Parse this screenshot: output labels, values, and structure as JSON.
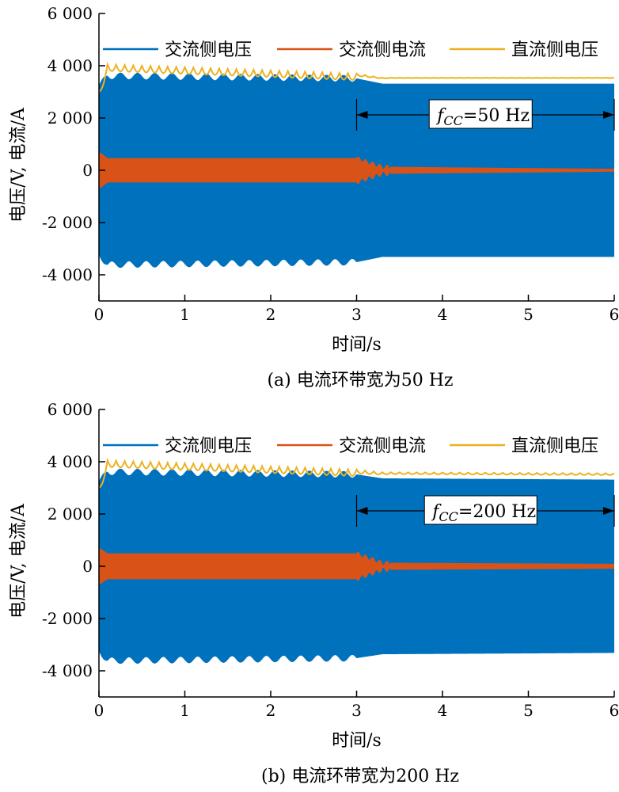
{
  "chart_data": [
    {
      "type": "line",
      "caption": "(a) 电流环带宽为50 Hz",
      "xlabel": "时间/s",
      "ylabel": "电压/V, 电流/A",
      "xlim": [
        0,
        6
      ],
      "ylim": [
        -5000,
        6000
      ],
      "x_ticks": [
        0,
        1,
        2,
        3,
        4,
        5,
        6
      ],
      "x_tick_labels": [
        "0",
        "1",
        "2",
        "3",
        "4",
        "5",
        "6"
      ],
      "y_ticks": [
        -4000,
        -2000,
        0,
        2000,
        4000,
        6000
      ],
      "y_tick_labels": [
        "-4 000",
        "-2 000",
        "0",
        "2 000",
        "4 000",
        "6 000"
      ],
      "legend_position": "top",
      "series": [
        {
          "name": "交流侧电压",
          "color": "#0072BD",
          "x": [
            0,
            0.1,
            3,
            3.3,
            6
          ],
          "amplitude": [
            3200,
            3600,
            3500,
            3300,
            3300
          ],
          "envelope_ripple_before_3s": 250
        },
        {
          "name": "交流侧电流",
          "color": "#D95319",
          "x": [
            0,
            0.1,
            3,
            3.3,
            6
          ],
          "amplitude": [
            700,
            450,
            450,
            120,
            40
          ]
        },
        {
          "name": "直流侧电压",
          "color": "#EDB120",
          "x": [
            0,
            0.1,
            3,
            3.3,
            6
          ],
          "y": [
            3000,
            4050,
            3700,
            3540,
            3540
          ],
          "ripple_before_3s": 250,
          "ripple_after_3s": 10
        }
      ],
      "annotation": {
        "text_f": "f",
        "text_sub": "CC",
        "text_rest": "=50 Hz",
        "x_range": [
          3,
          6
        ],
        "y": 2200
      }
    },
    {
      "type": "line",
      "caption": "(b) 电流环带宽为200 Hz",
      "xlabel": "时间/s",
      "ylabel": "电压/V, 电流/A",
      "xlim": [
        0,
        6
      ],
      "ylim": [
        -5000,
        6000
      ],
      "x_ticks": [
        0,
        1,
        2,
        3,
        4,
        5,
        6
      ],
      "x_tick_labels": [
        "0",
        "1",
        "2",
        "3",
        "4",
        "5",
        "6"
      ],
      "y_ticks": [
        -4000,
        -2000,
        0,
        2000,
        4000,
        6000
      ],
      "y_tick_labels": [
        "-4 000",
        "-2 000",
        "0",
        "2 000",
        "4 000",
        "6 000"
      ],
      "legend_position": "top",
      "series": [
        {
          "name": "交流侧电压",
          "color": "#0072BD",
          "x": [
            0,
            0.1,
            3,
            3.3,
            6
          ],
          "amplitude": [
            3200,
            3600,
            3500,
            3350,
            3300
          ],
          "envelope_ripple_before_3s": 250
        },
        {
          "name": "交流侧电流",
          "color": "#D95319",
          "x": [
            0,
            0.1,
            3,
            3.3,
            6
          ],
          "amplitude": [
            700,
            480,
            480,
            120,
            80
          ]
        },
        {
          "name": "直流侧电压",
          "color": "#EDB120",
          "x": [
            0,
            0.1,
            3,
            3.3,
            6
          ],
          "y": [
            3000,
            4050,
            3700,
            3600,
            3560
          ],
          "ripple_before_3s": 250,
          "ripple_after_3s": 70
        }
      ],
      "annotation": {
        "text_f": "f",
        "text_sub": "CC",
        "text_rest": "=200 Hz",
        "x_range": [
          3,
          6
        ],
        "y": 2200
      }
    }
  ]
}
